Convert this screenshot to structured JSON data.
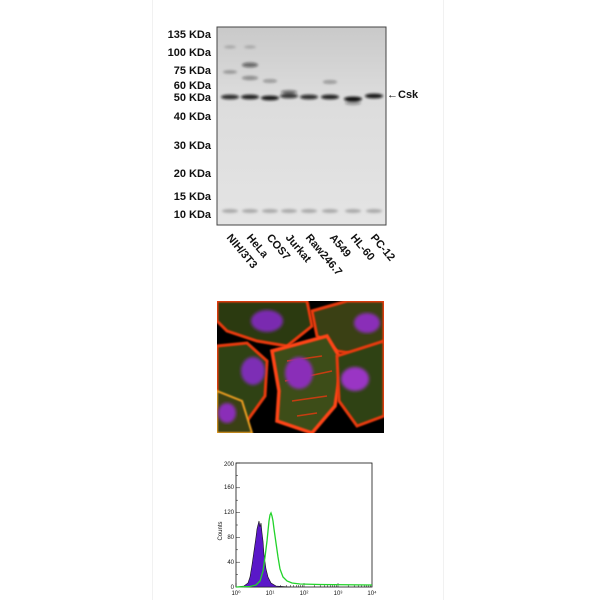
{
  "western_blot": {
    "mw_markers": [
      "135 KDa",
      "100 KDa",
      "75 KDa",
      "60 KDa",
      "50 KDa",
      "40 KDa",
      "30 KDa",
      "20 KDa",
      "15 KDa",
      "10 KDa"
    ],
    "lanes": [
      "NIH/3T3",
      "HeLa",
      "COS7",
      "Jurkat",
      "Raw246.7",
      "A549",
      "HL-60",
      "PC-12"
    ],
    "band_label": "Csk",
    "arrow_glyph": "←"
  },
  "immunofluorescence": {
    "colors": {
      "background": "#000000",
      "actin": "#e83a10",
      "tubulin": "#6fb52a",
      "nucleus": "#8a2fb8"
    }
  },
  "flow_cytometry": {
    "y_axis_label": "Counts",
    "y_ticks": [
      "0",
      "40",
      "80",
      "120",
      "160",
      "200"
    ],
    "x_ticks": [
      "10⁰",
      "10¹",
      "10²",
      "10³",
      "10⁴"
    ],
    "colors": {
      "control": "#5a18c8",
      "sample": "#22d32a",
      "control_outline": "#111111"
    }
  }
}
